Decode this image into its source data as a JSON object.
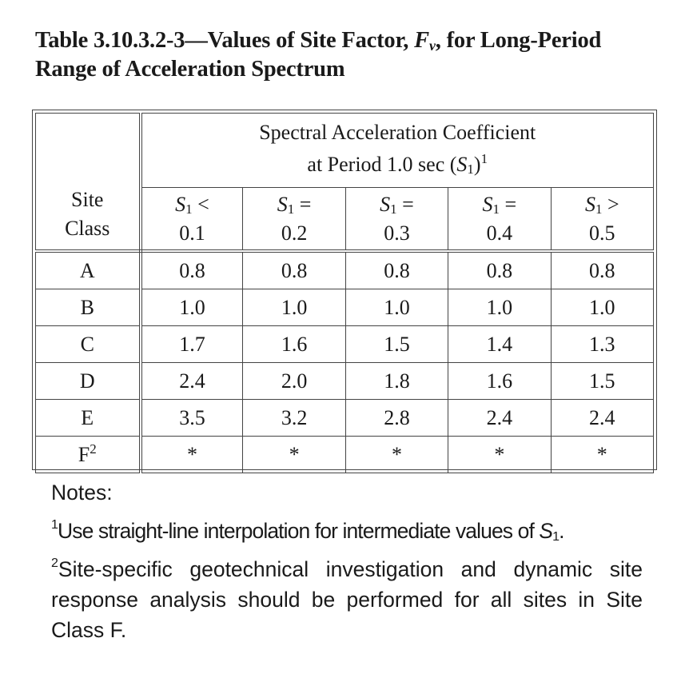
{
  "title": {
    "prefix": "Table 3.10.3.2-3—Values of Site Factor, ",
    "symbol": "F",
    "symbol_sub": "v",
    "suffix": ", for Long-Period Range of Acceleration Spectrum"
  },
  "table": {
    "corner_header": {
      "line1": "Site",
      "line2": "Class"
    },
    "spectral_header": {
      "line1": "Spectral Acceleration Coefficient",
      "line2_prefix": "at Period 1.0 sec (",
      "symbol": "S",
      "symbol_sub": "1",
      "line2_suffix": ")",
      "footnote": "1"
    },
    "columns": [
      {
        "symbol": "S",
        "sub": "1",
        "op": " <",
        "value": "0.1"
      },
      {
        "symbol": "S",
        "sub": "1",
        "op": " =",
        "value": "0.2"
      },
      {
        "symbol": "S",
        "sub": "1",
        "op": " =",
        "value": "0.3"
      },
      {
        "symbol": "S",
        "sub": "1",
        "op": " =",
        "value": "0.4"
      },
      {
        "symbol": "S",
        "sub": "1",
        "op": " >",
        "value": "0.5"
      }
    ],
    "rows": [
      {
        "cls": "A",
        "cls_sup": "",
        "values": [
          "0.8",
          "0.8",
          "0.8",
          "0.8",
          "0.8"
        ]
      },
      {
        "cls": "B",
        "cls_sup": "",
        "values": [
          "1.0",
          "1.0",
          "1.0",
          "1.0",
          "1.0"
        ]
      },
      {
        "cls": "C",
        "cls_sup": "",
        "values": [
          "1.7",
          "1.6",
          "1.5",
          "1.4",
          "1.3"
        ]
      },
      {
        "cls": "D",
        "cls_sup": "",
        "values": [
          "2.4",
          "2.0",
          "1.8",
          "1.6",
          "1.5"
        ]
      },
      {
        "cls": "E",
        "cls_sup": "",
        "values": [
          "3.5",
          "3.2",
          "2.8",
          "2.4",
          "2.4"
        ]
      },
      {
        "cls": "F",
        "cls_sup": "2",
        "values": [
          "*",
          "*",
          "*",
          "*",
          "*"
        ]
      }
    ]
  },
  "notes": {
    "heading": "Notes:",
    "note1": {
      "marker": "1",
      "text": "Use straight-line interpolation for intermediate values of ",
      "symbol": "S",
      "symbol_sub": "1",
      "end": "."
    },
    "note2": {
      "marker": "2",
      "text": "Site-specific geotechnical investigation and dynamic site response analysis should be performed for all sites in Site Class F."
    }
  }
}
